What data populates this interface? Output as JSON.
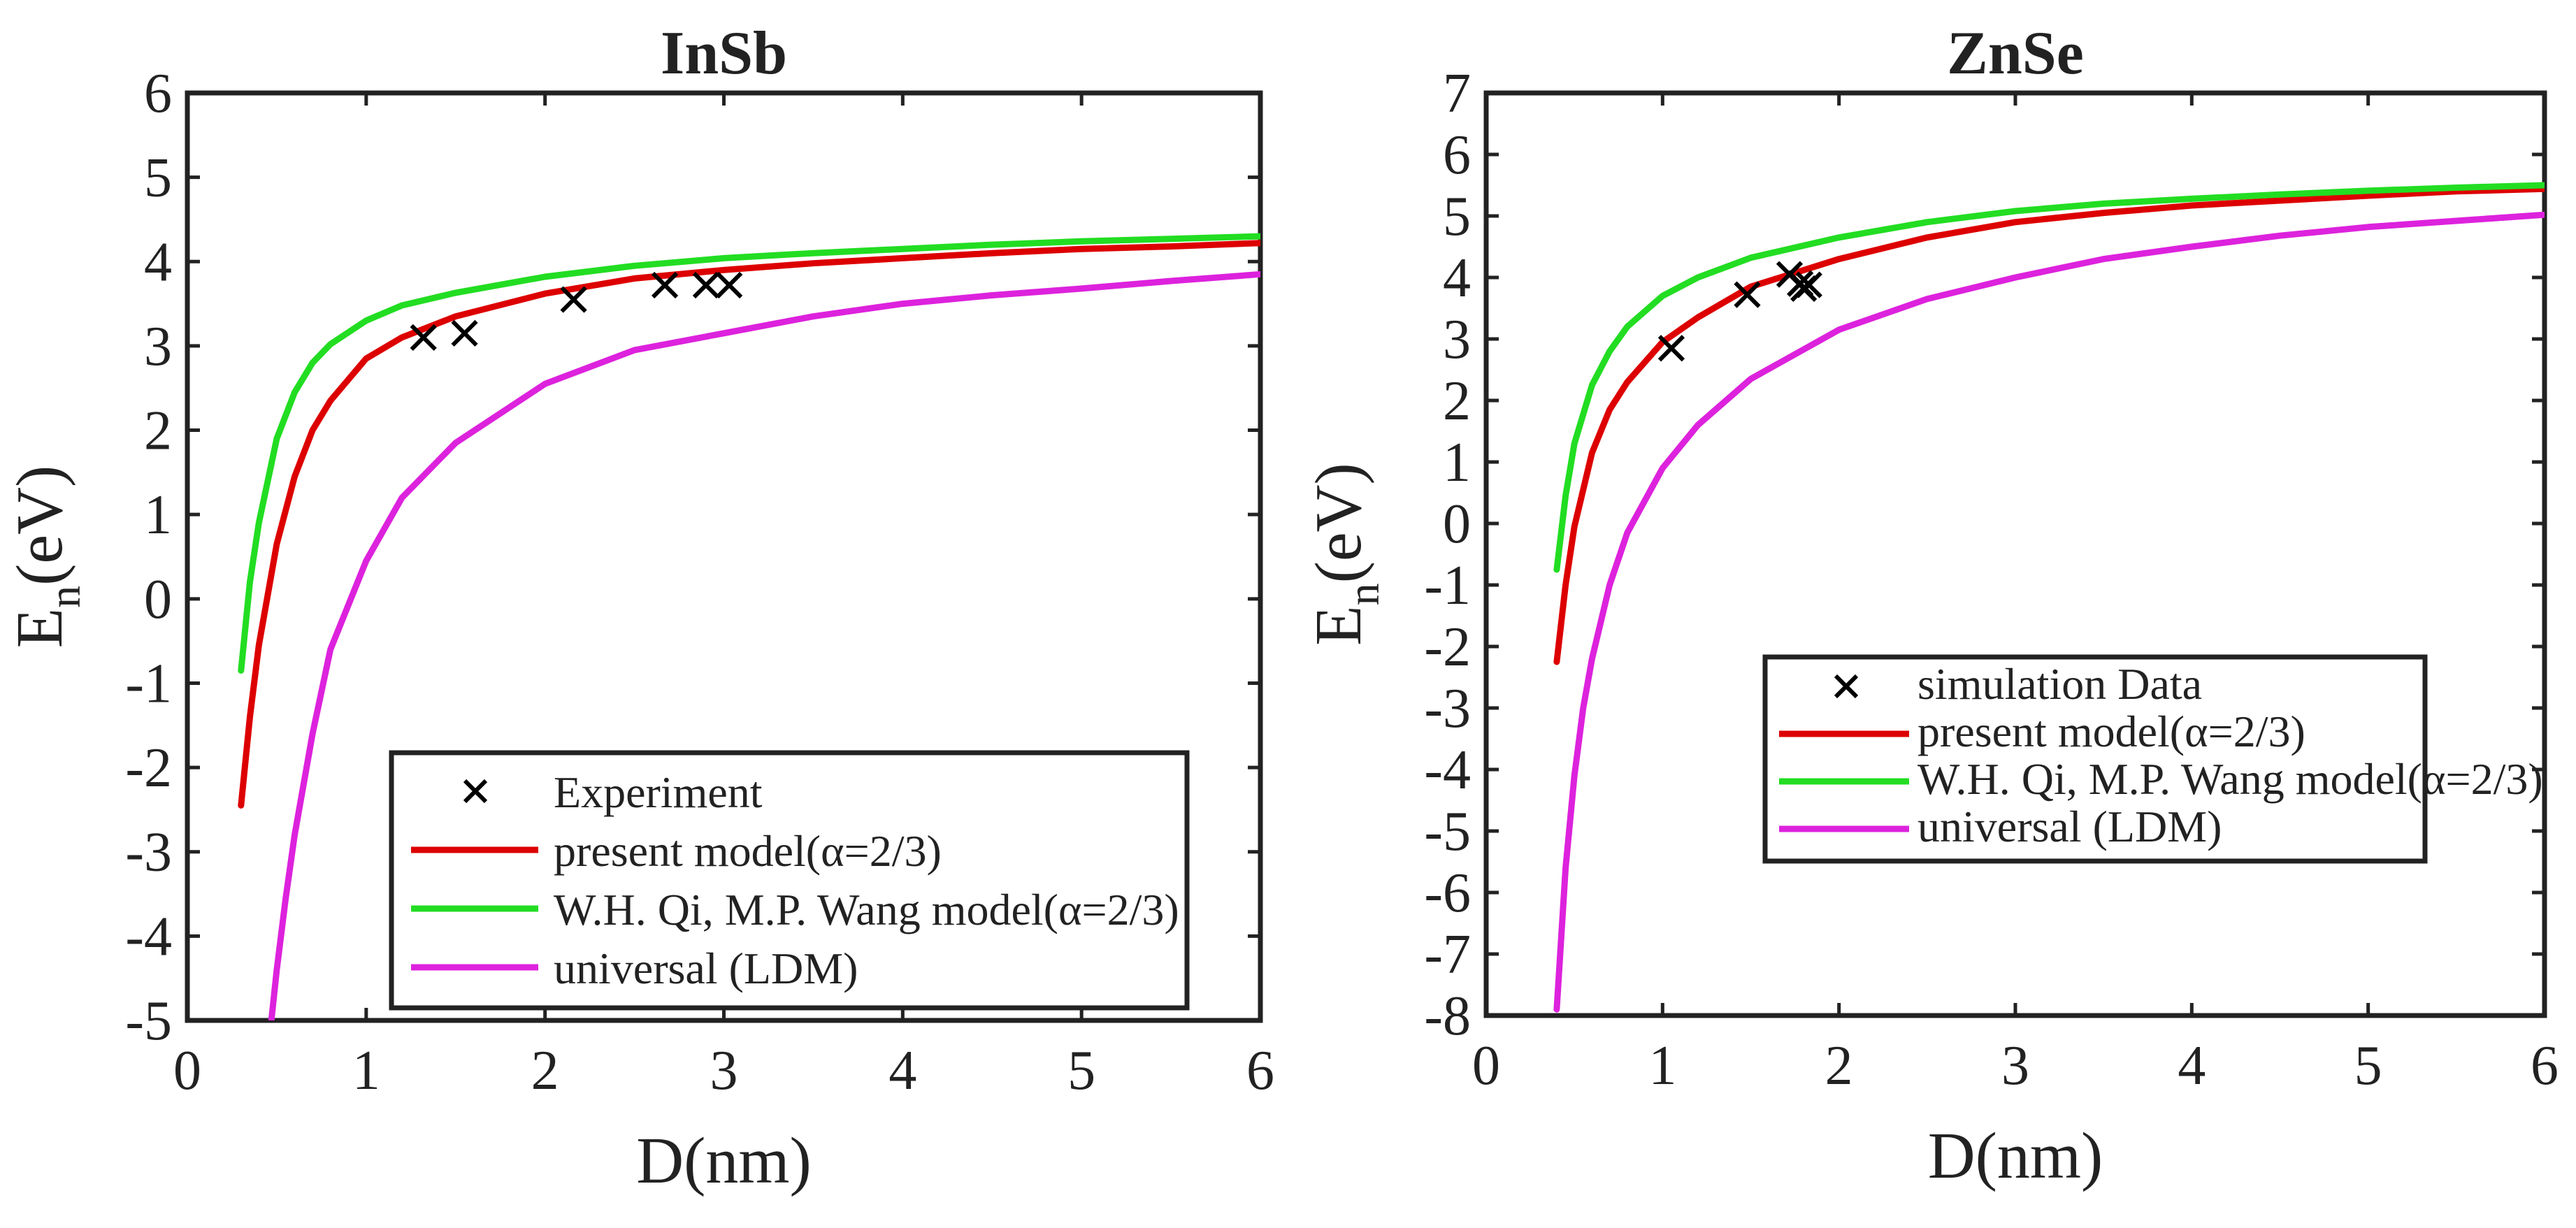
{
  "chart_data": [
    {
      "type": "line",
      "title": "InSb",
      "xlabel": "D(nm)",
      "ylabel": "E_n(eV)",
      "ylabel_main": "E",
      "ylabel_sub": "n",
      "ylabel_unit": "(eV)",
      "xlim": [
        0,
        6
      ],
      "ylim": [
        -5,
        6
      ],
      "xticks": [
        0,
        1,
        2,
        3,
        4,
        5,
        6
      ],
      "yticks": [
        -5,
        -4,
        -3,
        -2,
        -1,
        0,
        1,
        2,
        3,
        4,
        5,
        6
      ],
      "legend_position": "bottom-right",
      "scatter": {
        "name": "Experiment",
        "color": "#000000",
        "x": [
          1.32,
          1.55,
          2.16,
          2.67,
          2.9,
          3.03
        ],
        "y": [
          3.1,
          3.15,
          3.55,
          3.72,
          3.72,
          3.72
        ]
      },
      "series": [
        {
          "name": "present model(α=2/3)",
          "color": "#dd0000",
          "x": [
            0.3,
            0.35,
            0.4,
            0.5,
            0.6,
            0.7,
            0.8,
            1.0,
            1.2,
            1.5,
            2.0,
            2.5,
            3.0,
            3.5,
            4.0,
            4.5,
            5.0,
            5.5,
            6.0
          ],
          "y": [
            -2.45,
            -1.4,
            -0.55,
            0.65,
            1.45,
            2.0,
            2.35,
            2.85,
            3.1,
            3.35,
            3.62,
            3.8,
            3.9,
            3.98,
            4.04,
            4.1,
            4.15,
            4.18,
            4.22
          ]
        },
        {
          "name": "W.H. Qi, M.P. Wang model(α=2/3)",
          "color": "#22dd22",
          "x": [
            0.3,
            0.35,
            0.4,
            0.5,
            0.6,
            0.7,
            0.8,
            1.0,
            1.2,
            1.5,
            2.0,
            2.5,
            3.0,
            3.5,
            4.0,
            4.5,
            5.0,
            5.5,
            6.0
          ],
          "y": [
            -0.85,
            0.2,
            0.9,
            1.9,
            2.45,
            2.8,
            3.02,
            3.3,
            3.48,
            3.63,
            3.82,
            3.95,
            4.04,
            4.1,
            4.15,
            4.2,
            4.24,
            4.27,
            4.3
          ]
        },
        {
          "name": "universal (LDM)",
          "color": "#dd22dd",
          "x": [
            0.47,
            0.5,
            0.55,
            0.6,
            0.7,
            0.8,
            1.0,
            1.2,
            1.5,
            2.0,
            2.5,
            3.0,
            3.5,
            4.0,
            4.5,
            5.0,
            5.5,
            6.0
          ],
          "y": [
            -5.0,
            -4.4,
            -3.55,
            -2.8,
            -1.6,
            -0.6,
            0.45,
            1.2,
            1.85,
            2.55,
            2.95,
            3.15,
            3.35,
            3.5,
            3.6,
            3.68,
            3.77,
            3.85
          ]
        }
      ]
    },
    {
      "type": "line",
      "title": "ZnSe",
      "xlabel": "D(nm)",
      "ylabel": "E_n(eV)",
      "ylabel_main": "E",
      "ylabel_sub": "n",
      "ylabel_unit": "(eV)",
      "xlim": [
        0,
        6
      ],
      "ylim": [
        -8,
        7
      ],
      "xticks": [
        0,
        1,
        2,
        3,
        4,
        5,
        6
      ],
      "yticks": [
        -8,
        -7,
        -6,
        -5,
        -4,
        -3,
        -2,
        -1,
        0,
        1,
        2,
        3,
        4,
        5,
        6,
        7
      ],
      "legend_position": "center-right",
      "scatter": {
        "name": "simulation Data",
        "color": "#000000",
        "x": [
          1.05,
          1.48,
          1.72,
          1.78,
          1.8,
          1.83
        ],
        "y": [
          2.85,
          3.72,
          4.05,
          3.9,
          3.82,
          3.88
        ]
      },
      "series": [
        {
          "name": "present model(α=2/3)",
          "color": "#dd0000",
          "x": [
            0.4,
            0.45,
            0.5,
            0.6,
            0.7,
            0.8,
            1.0,
            1.2,
            1.5,
            2.0,
            2.5,
            3.0,
            3.5,
            4.0,
            4.5,
            5.0,
            5.5,
            6.0
          ],
          "y": [
            -2.25,
            -1.0,
            -0.05,
            1.15,
            1.85,
            2.3,
            2.95,
            3.35,
            3.85,
            4.3,
            4.65,
            4.9,
            5.05,
            5.17,
            5.25,
            5.33,
            5.4,
            5.44
          ],
          "legend_name": "present model(α=2/3)"
        },
        {
          "name": "W.H. Qi, M.P. Wang model(α=2/3)",
          "color": "#22dd22",
          "x": [
            0.4,
            0.45,
            0.5,
            0.6,
            0.7,
            0.8,
            1.0,
            1.2,
            1.5,
            2.0,
            2.5,
            3.0,
            3.5,
            4.0,
            4.5,
            5.0,
            5.5,
            6.0
          ],
          "y": [
            -0.75,
            0.45,
            1.3,
            2.25,
            2.8,
            3.2,
            3.7,
            4.0,
            4.32,
            4.65,
            4.9,
            5.08,
            5.2,
            5.28,
            5.35,
            5.41,
            5.46,
            5.5
          ]
        },
        {
          "name": "universal (LDM)",
          "color": "#dd22dd",
          "x": [
            0.4,
            0.45,
            0.5,
            0.55,
            0.6,
            0.7,
            0.8,
            1.0,
            1.2,
            1.5,
            2.0,
            2.5,
            3.0,
            3.5,
            4.0,
            4.5,
            5.0,
            5.5,
            6.0
          ],
          "y": [
            -7.9,
            -5.6,
            -4.1,
            -3.0,
            -2.2,
            -1.0,
            -0.15,
            0.9,
            1.6,
            2.35,
            3.15,
            3.65,
            4.0,
            4.3,
            4.5,
            4.68,
            4.82,
            4.92,
            5.02
          ]
        }
      ]
    }
  ]
}
